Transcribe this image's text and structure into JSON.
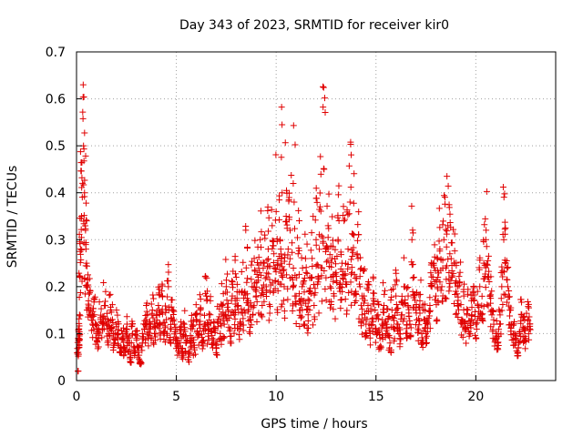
{
  "chart_data": {
    "type": "scatter",
    "title": "Day 343 of 2023, SRMTID for receiver kir0",
    "xlabel": "GPS time / hours",
    "ylabel": "SRMTID / TECUs",
    "xlim": [
      0,
      24
    ],
    "ylim": [
      0,
      0.7
    ],
    "xticks": [
      0,
      5,
      10,
      15,
      20
    ],
    "yticks": [
      0,
      0.1,
      0.2,
      0.3,
      0.4,
      0.5,
      0.6,
      0.7
    ],
    "grid": true,
    "marker": "plus",
    "color": "#e00000",
    "series": [
      {
        "name": "SRMTID",
        "x": [
          0.05,
          0.08,
          0.1,
          0.12,
          0.15,
          0.18,
          0.2,
          0.25,
          0.3,
          0.35,
          0.4,
          0.45,
          0.5,
          0.55,
          0.6,
          0.7,
          0.8,
          0.9,
          1.0,
          1.1,
          1.2,
          1.3,
          1.4,
          1.5,
          1.6,
          1.7,
          1.8,
          1.9,
          2.0,
          2.1,
          2.2,
          2.3,
          2.4,
          2.5,
          2.6,
          2.7,
          2.8,
          2.9,
          3.0,
          3.1,
          3.2,
          3.3,
          3.4,
          3.5,
          3.6,
          3.7,
          3.8,
          3.9,
          4.0,
          4.1,
          4.2,
          4.3,
          4.4,
          4.5,
          4.6,
          4.7,
          4.8,
          4.9,
          5.0,
          5.1,
          5.2,
          5.3,
          5.4,
          5.5,
          5.6,
          5.7,
          5.8,
          5.9,
          6.0,
          6.1,
          6.2,
          6.3,
          6.4,
          6.5,
          6.6,
          6.7,
          6.8,
          6.9,
          7.0,
          7.1,
          7.2,
          7.3,
          7.4,
          7.5,
          7.6,
          7.7,
          7.8,
          7.9,
          8.0,
          8.1,
          8.2,
          8.3,
          8.4,
          8.5,
          8.6,
          8.7,
          8.8,
          8.9,
          9.0,
          9.1,
          9.2,
          9.3,
          9.4,
          9.5,
          9.6,
          9.7,
          9.8,
          9.9,
          10.0,
          10.1,
          10.2,
          10.25,
          10.3,
          10.4,
          10.5,
          10.6,
          10.7,
          10.8,
          10.9,
          11.0,
          11.1,
          11.2,
          11.3,
          11.4,
          11.5,
          11.6,
          11.7,
          11.8,
          11.9,
          12.0,
          12.1,
          12.2,
          12.3,
          12.4,
          12.5,
          12.6,
          12.7,
          12.8,
          12.9,
          13.0,
          13.1,
          13.2,
          13.3,
          13.4,
          13.5,
          13.6,
          13.7,
          13.8,
          13.9,
          14.0,
          14.1,
          14.2,
          14.3,
          14.4,
          14.5,
          14.6,
          14.7,
          14.8,
          14.9,
          15.0,
          15.1,
          15.2,
          15.3,
          15.4,
          15.5,
          15.6,
          15.7,
          15.8,
          15.9,
          16.0,
          16.1,
          16.2,
          16.3,
          16.4,
          16.5,
          16.6,
          16.7,
          16.8,
          16.9,
          17.0,
          17.1,
          17.2,
          17.3,
          17.4,
          17.5,
          17.6,
          17.7,
          17.8,
          17.9,
          18.0,
          18.1,
          18.2,
          18.3,
          18.4,
          18.5,
          18.6,
          18.7,
          18.8,
          18.9,
          19.0,
          19.1,
          19.2,
          19.3,
          19.4,
          19.5,
          19.6,
          19.7,
          19.8,
          19.9,
          20.0,
          20.1,
          20.2,
          20.3,
          20.4,
          20.5,
          20.6,
          20.7,
          20.8,
          20.9,
          21.0,
          21.1,
          21.2,
          21.3,
          21.4,
          21.5,
          21.6,
          21.7,
          21.8,
          21.9,
          22.0,
          22.1,
          22.2,
          22.3,
          22.4,
          22.5,
          22.6,
          22.7,
          22.8,
          0.06,
          0.09,
          0.11,
          0.14,
          0.22,
          0.28,
          0.35,
          0.42,
          0.5,
          0.4,
          0.32,
          0.25,
          0.2,
          0.17,
          0.15,
          0.12,
          0.14,
          0.1,
          0.09,
          0.13,
          0.11,
          0.16,
          0.12,
          0.1,
          0.15,
          0.13,
          0.08,
          0.12,
          0.1,
          0.06,
          0.09,
          0.07,
          0.11,
          0.08,
          0.05,
          0.1,
          0.07,
          0.09,
          0.06,
          0.04,
          0.08,
          0.11,
          0.13,
          0.09,
          0.12,
          0.15,
          0.1,
          0.14,
          0.16,
          0.12,
          0.18,
          0.1,
          0.13,
          0.2,
          0.11,
          0.15,
          0.12,
          0.09,
          0.07,
          0.1,
          0.06,
          0.12,
          0.08,
          0.05,
          0.09,
          0.11,
          0.07,
          0.13,
          0.1,
          0.15,
          0.08,
          0.12,
          0.18,
          0.1,
          0.14,
          0.09,
          0.11,
          0.07,
          0.13,
          0.1,
          0.16,
          0.12,
          0.2,
          0.15,
          0.11,
          0.18,
          0.14,
          0.22,
          0.16,
          0.12,
          0.19,
          0.15,
          0.24,
          0.17,
          0.13,
          0.2,
          0.26,
          0.18,
          0.22,
          0.3,
          0.16,
          0.25,
          0.2,
          0.28,
          0.19,
          0.33,
          0.24,
          0.36,
          0.21,
          0.3,
          0.25,
          0.4,
          0.2,
          0.35,
          0.28,
          0.32,
          0.22,
          0.38,
          0.18,
          0.27,
          0.15,
          0.2,
          0.17,
          0.23,
          0.14,
          0.19,
          0.26,
          0.16,
          0.3,
          0.21,
          0.37,
          0.24,
          0.45,
          0.28,
          0.33,
          0.2,
          0.26,
          0.18,
          0.23,
          0.3,
          0.19,
          0.25,
          0.34,
          0.21,
          0.28,
          0.38,
          0.23,
          0.31,
          0.17,
          0.26,
          0.2,
          0.14,
          0.18,
          0.12,
          0.16,
          0.1,
          0.13,
          0.17,
          0.11,
          0.14,
          0.09,
          0.12,
          0.16,
          0.1,
          0.13,
          0.08,
          0.15,
          0.11,
          0.18,
          0.12,
          0.09,
          0.14,
          0.2,
          0.1,
          0.16,
          0.12,
          0.3,
          0.22,
          0.15,
          0.11,
          0.17,
          0.08,
          0.13,
          0.1,
          0.12,
          0.16,
          0.2,
          0.25,
          0.18,
          0.22,
          0.28,
          0.2,
          0.3,
          0.24,
          0.33,
          0.27,
          0.22,
          0.25,
          0.19,
          0.16,
          0.21,
          0.13,
          0.18,
          0.11,
          0.15,
          0.1,
          0.14,
          0.17,
          0.12,
          0.16,
          0.2,
          0.14,
          0.25,
          0.3,
          0.22,
          0.18,
          0.15,
          0.12,
          0.1,
          0.08,
          0.12,
          0.2,
          0.3,
          0.25,
          0.2,
          0.15,
          0.12,
          0.1,
          0.08,
          0.06,
          0.1,
          0.14,
          0.11,
          0.09,
          0.13,
          0.11
        ]
      }
    ]
  }
}
